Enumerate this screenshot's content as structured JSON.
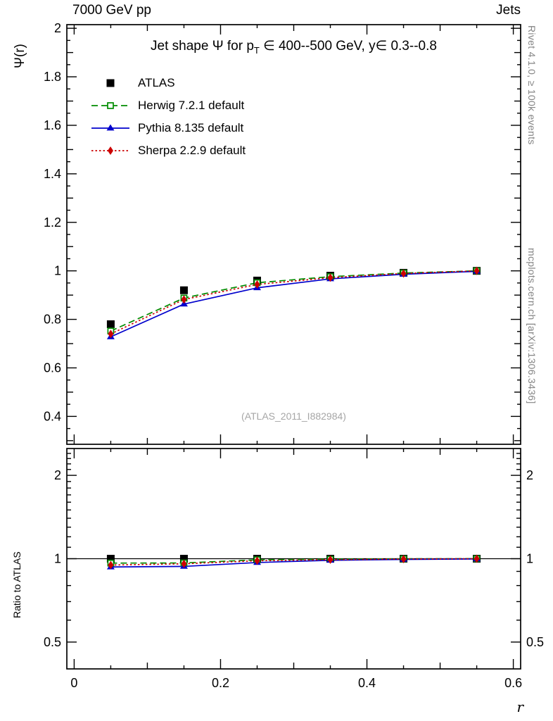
{
  "header": {
    "left": "7000 GeV pp",
    "right": "Jets"
  },
  "side_notes": {
    "right_top": "Rivet 4.1.0, ≥ 100k events",
    "right_bottom": "mcplots.cern.ch [arXiv:1306.3436]"
  },
  "main_panel": {
    "title_pre": "Jet shape Ψ for p",
    "title_sub": "T",
    "title_post": " ∈ 400--500 GeV, y∈ 0.3--0.8",
    "ylabel": "Ψ(r)",
    "watermark": "(ATLAS_2011_I882984)"
  },
  "ratio_panel": {
    "ylabel": "Ratio to ATLAS"
  },
  "chart_data": {
    "type": "line",
    "title": "Jet shape Ψ for pT ∈ 400--500 GeV, y∈ 0.3--0.8",
    "xlabel": "r",
    "ylabel": "Ψ(r)",
    "ratio_ylabel": "Ratio to ATLAS",
    "legend_position": "top-left",
    "x": [
      0.05,
      0.15,
      0.25,
      0.35,
      0.45,
      0.55
    ],
    "x_axis": {
      "lim": [
        -0.01,
        0.61
      ],
      "major_ticks": [
        0,
        0.2,
        0.4,
        0.6
      ],
      "tick_labels": [
        "0",
        "0.2",
        "0.4",
        "0.6"
      ]
    },
    "main_y_axis": {
      "scale": "linear",
      "lim": [
        0.285,
        2.015
      ],
      "major_ticks": [
        0.4,
        0.6,
        0.8,
        1.0,
        1.2,
        1.4,
        1.6,
        1.8,
        2.0
      ],
      "tick_labels": [
        "0.4",
        "0.6",
        "0.8",
        "1",
        "1.2",
        "1.4",
        "1.6",
        "1.8",
        "2"
      ]
    },
    "ratio_y_axis": {
      "scale": "log",
      "lim": [
        0.4,
        2.5
      ],
      "major_ticks": [
        0.5,
        1,
        2
      ],
      "tick_labels": [
        "0.5",
        "1",
        "2"
      ],
      "minor_ticks": [
        0.6,
        0.7,
        0.8,
        0.9,
        1.1,
        1.2,
        1.3,
        1.4,
        1.5,
        1.6,
        1.7,
        1.8,
        1.9,
        2.1,
        2.2,
        2.3,
        2.4
      ]
    },
    "ratio_reference_line": 1.0,
    "series": [
      {
        "name": "ATLAS",
        "color": "#000000",
        "line": "none",
        "marker": "filled-square",
        "values": [
          0.78,
          0.92,
          0.96,
          0.98,
          0.992,
          1.0
        ]
      },
      {
        "name": "Herwig 7.2.1 default",
        "color": "#008c00",
        "line": "dashed",
        "marker": "open-square",
        "values": [
          0.752,
          0.888,
          0.951,
          0.976,
          0.991,
          1.0
        ]
      },
      {
        "name": "Pythia 8.135 default",
        "color": "#0000cc",
        "line": "solid",
        "marker": "filled-triangle",
        "values": [
          0.728,
          0.863,
          0.93,
          0.967,
          0.986,
          0.998
        ]
      },
      {
        "name": "Sherpa 2.2.9 default",
        "color": "#cc0000",
        "line": "dotted",
        "marker": "filled-diamond",
        "values": [
          0.74,
          0.882,
          0.944,
          0.972,
          0.989,
          1.0
        ]
      }
    ]
  }
}
